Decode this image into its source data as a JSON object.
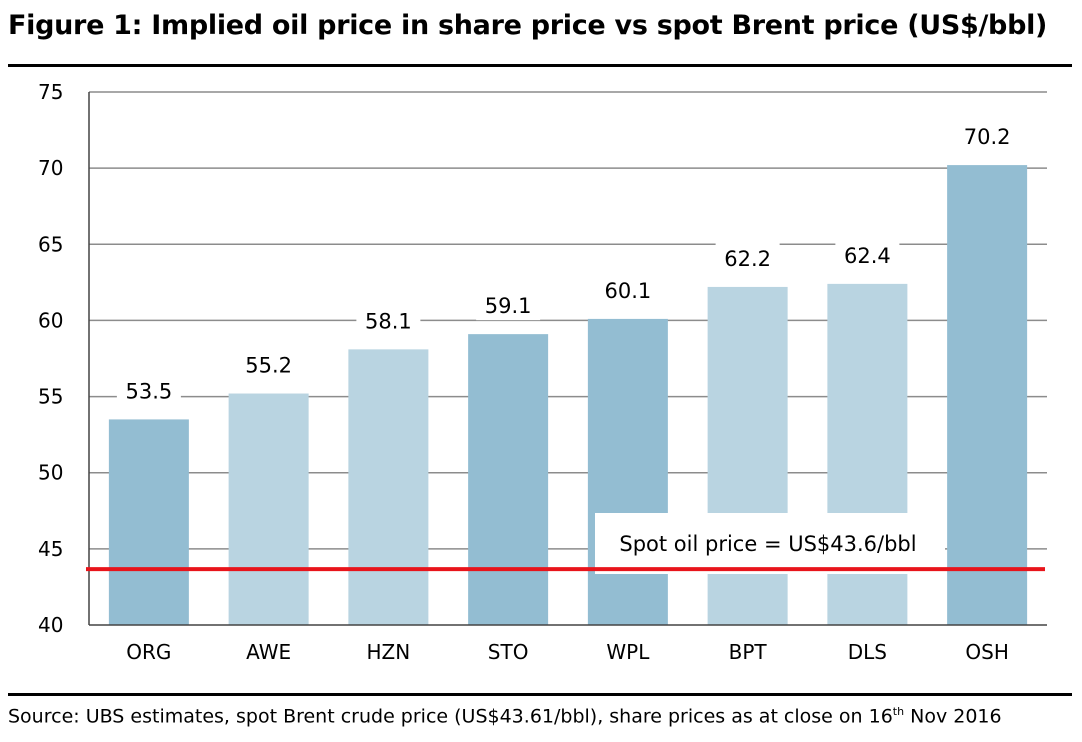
{
  "header": {
    "title": "Figure 1: Implied oil price in share price vs spot Brent price (US$/bbl)"
  },
  "footer": {
    "source_prefix": "Source:  UBS estimates, spot Brent crude price (US$43.61/bbl), share prices as at close on 16",
    "source_sup": "th",
    "source_suffix": " Nov 2016"
  },
  "colors": {
    "dark_bar": "#93bdd2",
    "light_bar": "#b9d4e1",
    "reference_line": "#e8141b",
    "grid": "#8c8c8c"
  },
  "chart_data": {
    "type": "bar",
    "title": "Figure 1: Implied oil price in share price vs spot Brent price (US$/bbl)",
    "xlabel": "",
    "ylabel": "",
    "ylim": [
      40,
      75
    ],
    "yticks": [
      40,
      45,
      50,
      55,
      60,
      65,
      70,
      75
    ],
    "grid": true,
    "categories": [
      "ORG",
      "AWE",
      "HZN",
      "STO",
      "WPL",
      "BPT",
      "DLS",
      "OSH"
    ],
    "values": [
      53.5,
      55.2,
      58.1,
      59.1,
      60.1,
      62.2,
      62.4,
      70.2
    ],
    "data_labels": [
      "53.5",
      "55.2",
      "58.1",
      "59.1",
      "60.1",
      "62.2",
      "62.4",
      "70.2"
    ],
    "bar_shade": [
      "dark",
      "light",
      "light",
      "dark",
      "dark",
      "light",
      "light",
      "dark"
    ],
    "reference_line": {
      "value": 43.6,
      "label": "Spot oil price = US$43.6/bbl"
    }
  }
}
